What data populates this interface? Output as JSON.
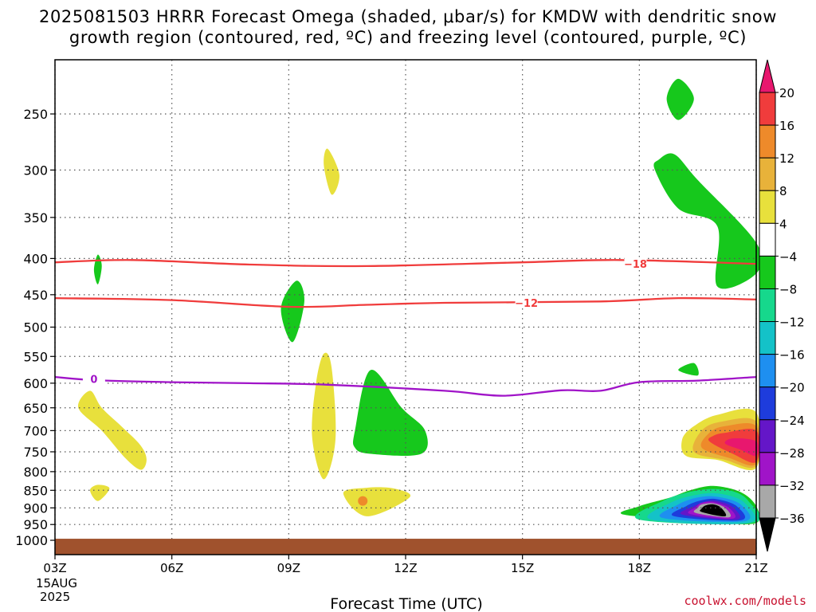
{
  "title": {
    "line1": "2025081503 HRRR Forecast Omega (shaded, μbar/s) for KMDW with dendritic snow",
    "line2": "growth region (contoured, red, ºC) and freezing level (contoured, purple, ºC)"
  },
  "credit": "coolwx.com/models",
  "chart_data": {
    "type": "contour",
    "title": "2025081503 HRRR Forecast Omega (shaded, μbar/s) for KMDW with dendritic snow growth region (contoured, red, ºC) and freezing level (contoured, purple, ºC)",
    "xlabel": "Forecast Time (UTC)",
    "ylabel": "",
    "x_ticks": [
      {
        "hour": 0,
        "label": "03Z"
      },
      {
        "hour": 3,
        "label": "06Z"
      },
      {
        "hour": 6,
        "label": "09Z"
      },
      {
        "hour": 9,
        "label": "12Z"
      },
      {
        "hour": 12,
        "label": "15Z"
      },
      {
        "hour": 15,
        "label": "18Z"
      },
      {
        "hour": 18,
        "label": "21Z"
      }
    ],
    "x_date_lines": [
      "15AUG",
      "2025"
    ],
    "xlim_hours": [
      0,
      18
    ],
    "y_ticks": [
      250,
      300,
      350,
      400,
      450,
      500,
      550,
      600,
      650,
      700,
      750,
      800,
      850,
      900,
      950,
      1000
    ],
    "y_unit": "hPa",
    "y_scale": "log",
    "ylim": [
      1050,
      200
    ],
    "grid": true,
    "colorbar": {
      "labels": [
        "20",
        "16",
        "12",
        "8",
        "4",
        "−4",
        "−8",
        "−12",
        "−16",
        "−20",
        "−24",
        "−28",
        "−32",
        "−36"
      ],
      "colors": [
        "#e8176e",
        "#f03c3c",
        "#ee8a2a",
        "#e8b23a",
        "#e8e03c",
        "#ffffff",
        "#16c81c",
        "#16d88c",
        "#14c2c8",
        "#1e8ff0",
        "#1e3cdc",
        "#6416c8",
        "#a014c8",
        "#a8a8a8",
        "#000000"
      ]
    },
    "contours": [
      {
        "name": "-18",
        "color": "#f03c3c",
        "points": [
          [
            0,
            405
          ],
          [
            2,
            402
          ],
          [
            5,
            408
          ],
          [
            8,
            410
          ],
          [
            12,
            405
          ],
          [
            14.5,
            402
          ],
          [
            18,
            407
          ]
        ],
        "label": "−18",
        "label_at": [
          14.9,
          407
        ]
      },
      {
        "name": "-12",
        "color": "#f03c3c",
        "points": [
          [
            0,
            455
          ],
          [
            3,
            458
          ],
          [
            6,
            468
          ],
          [
            8,
            465
          ],
          [
            10,
            462
          ],
          [
            14,
            460
          ],
          [
            16,
            455
          ],
          [
            18,
            457
          ]
        ],
        "label": "−12",
        "label_at": [
          12.1,
          462
        ]
      },
      {
        "name": "0",
        "color": "#a014c8",
        "points": [
          [
            0,
            588
          ],
          [
            1,
            594
          ],
          [
            3,
            598
          ],
          [
            5,
            600
          ],
          [
            7,
            603
          ],
          [
            10,
            615
          ],
          [
            11.5,
            625
          ],
          [
            13,
            614
          ],
          [
            14,
            615
          ],
          [
            15,
            598
          ],
          [
            16.5,
            595
          ],
          [
            18,
            588
          ]
        ],
        "label": "0",
        "label_at": [
          1.0,
          592
        ]
      }
    ],
    "shaded_regions": [
      {
        "omega": "4 to 8",
        "color": "#e8e03c",
        "points": [
          [
            0.6,
            650
          ],
          [
            1.2,
            700
          ],
          [
            1.8,
            765
          ],
          [
            2.2,
            795
          ],
          [
            2.35,
            770
          ],
          [
            2.2,
            735
          ],
          [
            1.7,
            690
          ],
          [
            1.2,
            650
          ],
          [
            0.9,
            615
          ]
        ]
      },
      {
        "omega": "4 to 8",
        "color": "#e8e03c",
        "points": [
          [
            0.9,
            850
          ],
          [
            1.1,
            880
          ],
          [
            1.4,
            845
          ],
          [
            1.1,
            835
          ]
        ]
      },
      {
        "omega": "4 to 8",
        "color": "#e8e03c",
        "points": [
          [
            6.6,
            715
          ],
          [
            6.9,
            820
          ],
          [
            7.2,
            720
          ],
          [
            7.1,
            570
          ],
          [
            6.9,
            545
          ],
          [
            6.7,
            600
          ]
        ]
      },
      {
        "omega": "4 to 8",
        "color": "#e8e03c",
        "points": [
          [
            6.9,
            295
          ],
          [
            7.1,
            325
          ],
          [
            7.3,
            305
          ],
          [
            7.0,
            280
          ]
        ]
      },
      {
        "omega": "4 to 8",
        "color": "#e8e03c",
        "points": [
          [
            7.4,
            858
          ],
          [
            8.0,
            925
          ],
          [
            9.1,
            870
          ],
          [
            8.7,
            845
          ],
          [
            8.0,
            843
          ]
        ]
      },
      {
        "omega": "-4 to -8",
        "color": "#16c81c",
        "points": [
          [
            1.0,
            415
          ],
          [
            1.1,
            435
          ],
          [
            1.2,
            410
          ],
          [
            1.1,
            395
          ]
        ]
      },
      {
        "omega": "-4 to -8",
        "color": "#16c81c",
        "points": [
          [
            5.8,
            470
          ],
          [
            6.1,
            525
          ],
          [
            6.4,
            460
          ],
          [
            6.2,
            430
          ]
        ]
      },
      {
        "omega": "-4 to -8",
        "color": "#16c81c",
        "points": [
          [
            7.7,
            700
          ],
          [
            7.7,
            740
          ],
          [
            8.1,
            755
          ],
          [
            9.4,
            755
          ],
          [
            9.5,
            700
          ],
          [
            8.9,
            650
          ],
          [
            8.1,
            575
          ]
        ]
      },
      {
        "omega": "-4 to -8",
        "color": "#16c81c",
        "points": [
          [
            15.7,
            238
          ],
          [
            16.0,
            255
          ],
          [
            16.4,
            238
          ],
          [
            16.0,
            223
          ]
        ]
      },
      {
        "omega": "-4 to -8",
        "color": "#16c81c",
        "points": [
          [
            15.4,
            300
          ],
          [
            16.0,
            340
          ],
          [
            17.0,
            360
          ],
          [
            17.0,
            438
          ],
          [
            18.0,
            420
          ],
          [
            18.0,
            380
          ],
          [
            16.5,
            310
          ],
          [
            15.9,
            285
          ],
          [
            15.5,
            290
          ]
        ]
      },
      {
        "omega": "-4 to -8",
        "color": "#16c81c",
        "points": [
          [
            16.0,
            575
          ],
          [
            16.5,
            585
          ],
          [
            16.4,
            562
          ]
        ]
      }
    ],
    "omega_core": {
      "region": "18Z to 21Z, 850 to 950 hPa",
      "min_omega": "< -36",
      "max_omega_upper": "> 16 near 700-750 hPa at 20Z"
    },
    "ground": {
      "color": "#a0522d"
    }
  }
}
